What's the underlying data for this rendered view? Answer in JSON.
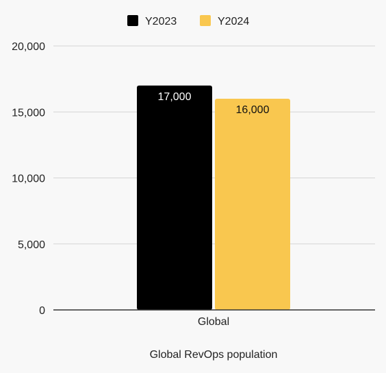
{
  "chart_data": {
    "type": "bar",
    "title": "",
    "xlabel": "Global RevOps population",
    "ylabel": "",
    "categories": [
      "Global"
    ],
    "series": [
      {
        "name": "Y2023",
        "values": [
          17000
        ],
        "color": "#000000",
        "label_color": "#ffffff",
        "value_label": "17,000"
      },
      {
        "name": "Y2024",
        "values": [
          16000
        ],
        "color": "#f9c74f",
        "label_color": "#111111",
        "value_label": "16,000"
      }
    ],
    "ylim": [
      0,
      20000
    ],
    "yticks": [
      0,
      5000,
      10000,
      15000,
      20000
    ],
    "ytick_labels": [
      "0",
      "5,000",
      "10,000",
      "15,000",
      "20,000"
    ],
    "grid": true,
    "legend": "top-center"
  }
}
